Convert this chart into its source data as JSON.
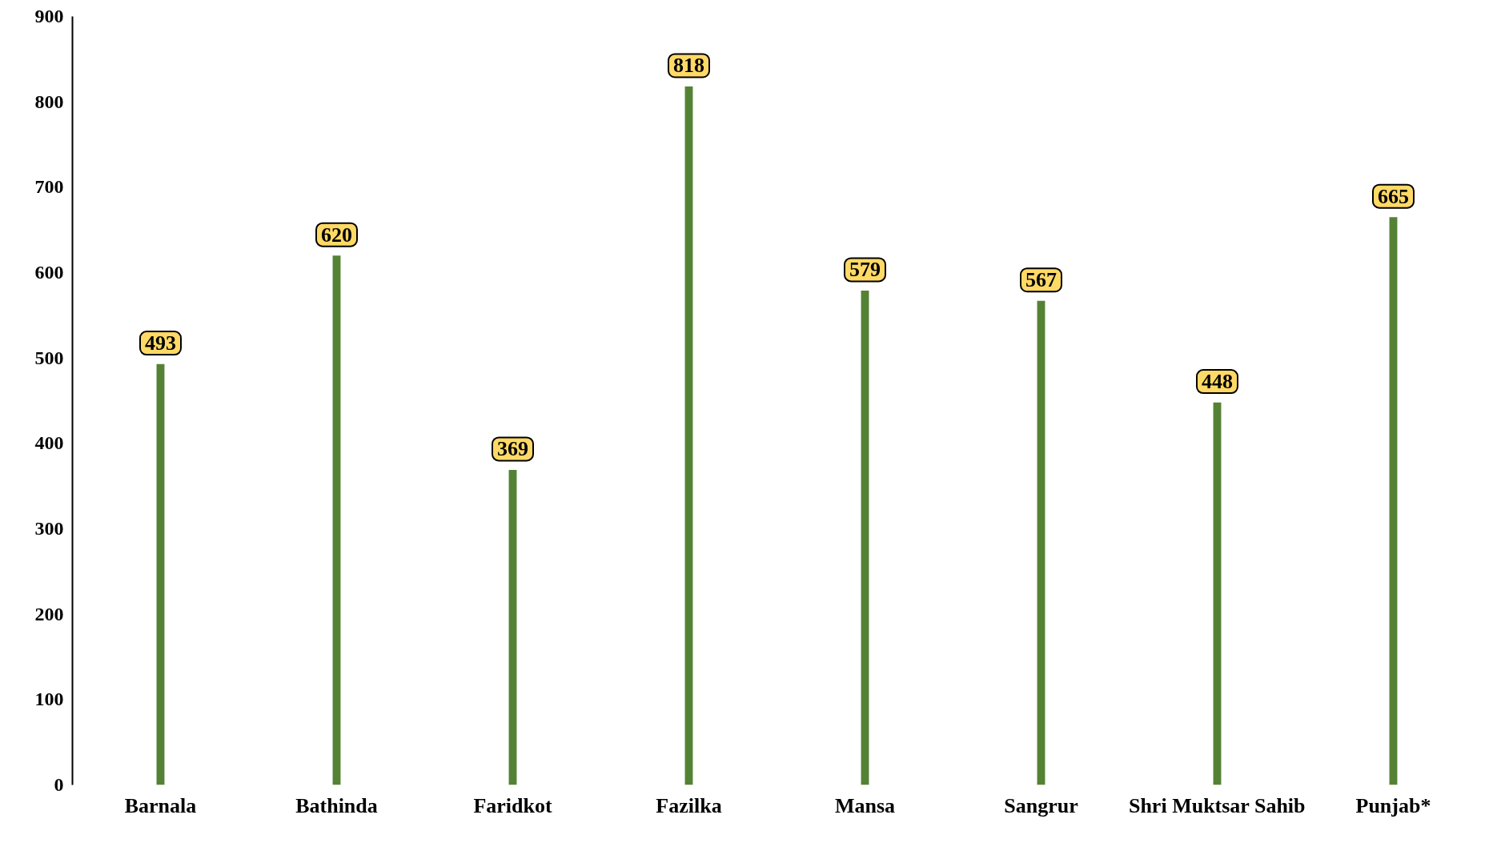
{
  "chart_data": {
    "type": "bar",
    "categories": [
      "Barnala",
      "Bathinda",
      "Faridkot",
      "Fazilka",
      "Mansa",
      "Sangrur",
      "Shri Muktsar Sahib",
      "Punjab*"
    ],
    "values": [
      493,
      620,
      369,
      818,
      579,
      567,
      448,
      665
    ],
    "color": "#548235",
    "ylim": [
      0,
      900
    ],
    "yticks": [
      0,
      100,
      200,
      300,
      400,
      500,
      600,
      700,
      800,
      900
    ],
    "grid": false,
    "data_labels": true
  }
}
